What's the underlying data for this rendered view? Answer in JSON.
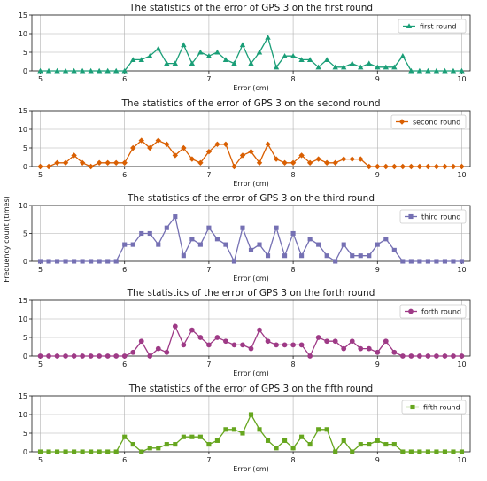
{
  "figure": {
    "ylabel": "Frequency count (times)",
    "xlabel": "Error (cm)"
  },
  "chart_data": [
    {
      "type": "line",
      "title": "The statistics of the error of GPS 3 on the first round",
      "xlabel": "Error (cm)",
      "ylabel": "",
      "xlim": [
        4.9,
        10.1
      ],
      "ylim": [
        0,
        15
      ],
      "xticks": [
        5,
        6,
        7,
        8,
        9,
        10
      ],
      "yticks": [
        0,
        5,
        10,
        15
      ],
      "grid": true,
      "legend": "top-right",
      "series": [
        {
          "name": "first round",
          "color": "#1a9e77",
          "marker": "triangle",
          "x": [
            5.0,
            5.1,
            5.2,
            5.3,
            5.4,
            5.5,
            5.6,
            5.7,
            5.8,
            5.9,
            6.0,
            6.1,
            6.2,
            6.3,
            6.4,
            6.5,
            6.6,
            6.7,
            6.8,
            6.9,
            7.0,
            7.1,
            7.2,
            7.3,
            7.4,
            7.5,
            7.6,
            7.7,
            7.8,
            7.9,
            8.0,
            8.1,
            8.2,
            8.3,
            8.4,
            8.5,
            8.6,
            8.7,
            8.8,
            8.9,
            9.0,
            9.1,
            9.2,
            9.3,
            9.4,
            9.5,
            9.6,
            9.7,
            9.8,
            9.9,
            10.0
          ],
          "y": [
            0,
            0,
            0,
            0,
            0,
            0,
            0,
            0,
            0,
            0,
            0,
            3,
            3,
            4,
            6,
            2,
            2,
            7,
            2,
            5,
            4,
            5,
            3,
            2,
            7,
            2,
            5,
            9,
            1,
            4,
            4,
            3,
            3,
            1,
            3,
            1,
            1,
            2,
            1,
            2,
            1,
            1,
            1,
            4,
            0,
            0,
            0,
            0,
            0,
            0,
            0
          ]
        }
      ]
    },
    {
      "type": "line",
      "title": "The statistics of the error of GPS 3 on the second round",
      "xlabel": "Error (cm)",
      "ylabel": "",
      "xlim": [
        4.9,
        10.1
      ],
      "ylim": [
        0,
        15
      ],
      "xticks": [
        5,
        6,
        7,
        8,
        9,
        10
      ],
      "yticks": [
        0,
        5,
        10,
        15
      ],
      "grid": true,
      "legend": "top-right",
      "series": [
        {
          "name": "second round",
          "color": "#d95f02",
          "marker": "diamond",
          "x": [
            5.0,
            5.1,
            5.2,
            5.3,
            5.4,
            5.5,
            5.6,
            5.7,
            5.8,
            5.9,
            6.0,
            6.1,
            6.2,
            6.3,
            6.4,
            6.5,
            6.6,
            6.7,
            6.8,
            6.9,
            7.0,
            7.1,
            7.2,
            7.3,
            7.4,
            7.5,
            7.6,
            7.7,
            7.8,
            7.9,
            8.0,
            8.1,
            8.2,
            8.3,
            8.4,
            8.5,
            8.6,
            8.7,
            8.8,
            8.9,
            9.0,
            9.1,
            9.2,
            9.3,
            9.4,
            9.5,
            9.6,
            9.7,
            9.8,
            9.9,
            10.0
          ],
          "y": [
            0,
            0,
            1,
            1,
            3,
            1,
            0,
            1,
            1,
            1,
            1,
            5,
            7,
            5,
            7,
            6,
            3,
            5,
            2,
            1,
            4,
            6,
            6,
            0,
            3,
            4,
            1,
            6,
            2,
            1,
            1,
            3,
            1,
            2,
            1,
            1,
            2,
            2,
            2,
            0,
            0,
            0,
            0,
            0,
            0,
            0,
            0,
            0,
            0,
            0,
            0
          ]
        }
      ]
    },
    {
      "type": "line",
      "title": "The statistics of the error of GPS 3 on the third round",
      "xlabel": "Error (cm)",
      "ylabel": "Frequency count (times)",
      "xlim": [
        4.9,
        10.1
      ],
      "ylim": [
        0,
        10
      ],
      "xticks": [
        5,
        6,
        7,
        8,
        9,
        10
      ],
      "yticks": [
        0,
        5,
        10
      ],
      "grid": true,
      "legend": "top-right",
      "series": [
        {
          "name": "third round",
          "color": "#7570b3",
          "marker": "square",
          "x": [
            5.0,
            5.1,
            5.2,
            5.3,
            5.4,
            5.5,
            5.6,
            5.7,
            5.8,
            5.9,
            6.0,
            6.1,
            6.2,
            6.3,
            6.4,
            6.5,
            6.6,
            6.7,
            6.8,
            6.9,
            7.0,
            7.1,
            7.2,
            7.3,
            7.4,
            7.5,
            7.6,
            7.7,
            7.8,
            7.9,
            8.0,
            8.1,
            8.2,
            8.3,
            8.4,
            8.5,
            8.6,
            8.7,
            8.8,
            8.9,
            9.0,
            9.1,
            9.2,
            9.3,
            9.4,
            9.5,
            9.6,
            9.7,
            9.8,
            9.9,
            10.0
          ],
          "y": [
            0,
            0,
            0,
            0,
            0,
            0,
            0,
            0,
            0,
            0,
            3,
            3,
            5,
            5,
            3,
            6,
            8,
            1,
            4,
            3,
            6,
            4,
            3,
            0,
            6,
            2,
            3,
            1,
            6,
            1,
            5,
            1,
            4,
            3,
            1,
            0,
            3,
            1,
            1,
            1,
            3,
            4,
            2,
            0,
            0,
            0,
            0,
            0,
            0,
            0,
            0
          ]
        }
      ]
    },
    {
      "type": "line",
      "title": "The statistics of the error of GPS 3 on the forth round",
      "xlabel": "Error (cm)",
      "ylabel": "",
      "xlim": [
        4.9,
        10.1
      ],
      "ylim": [
        0,
        15
      ],
      "xticks": [
        5,
        6,
        7,
        8,
        9,
        10
      ],
      "yticks": [
        0,
        5,
        10,
        15
      ],
      "grid": true,
      "legend": "top-right",
      "series": [
        {
          "name": "forth round",
          "color": "#9e3a86",
          "marker": "circle",
          "x": [
            5.0,
            5.1,
            5.2,
            5.3,
            5.4,
            5.5,
            5.6,
            5.7,
            5.8,
            5.9,
            6.0,
            6.1,
            6.2,
            6.3,
            6.4,
            6.5,
            6.6,
            6.7,
            6.8,
            6.9,
            7.0,
            7.1,
            7.2,
            7.3,
            7.4,
            7.5,
            7.6,
            7.7,
            7.8,
            7.9,
            8.0,
            8.1,
            8.2,
            8.3,
            8.4,
            8.5,
            8.6,
            8.7,
            8.8,
            8.9,
            9.0,
            9.1,
            9.2,
            9.3,
            9.4,
            9.5,
            9.6,
            9.7,
            9.8,
            9.9,
            10.0
          ],
          "y": [
            0,
            0,
            0,
            0,
            0,
            0,
            0,
            0,
            0,
            0,
            0,
            1,
            4,
            0,
            2,
            1,
            8,
            3,
            7,
            5,
            3,
            5,
            4,
            3,
            3,
            2,
            7,
            4,
            3,
            3,
            3,
            3,
            0,
            5,
            4,
            4,
            2,
            4,
            2,
            2,
            1,
            4,
            1,
            0,
            0,
            0,
            0,
            0,
            0,
            0,
            0
          ]
        }
      ]
    },
    {
      "type": "line",
      "title": "The statistics of the error of GPS 3 on the fifth round",
      "xlabel": "Error (cm)",
      "ylabel": "",
      "xlim": [
        4.9,
        10.1
      ],
      "ylim": [
        0,
        15
      ],
      "xticks": [
        5,
        6,
        7,
        8,
        9,
        10
      ],
      "yticks": [
        0,
        5,
        10,
        15
      ],
      "grid": true,
      "legend": "top-right",
      "series": [
        {
          "name": "fifth round",
          "color": "#66a61e",
          "marker": "square",
          "x": [
            5.0,
            5.1,
            5.2,
            5.3,
            5.4,
            5.5,
            5.6,
            5.7,
            5.8,
            5.9,
            6.0,
            6.1,
            6.2,
            6.3,
            6.4,
            6.5,
            6.6,
            6.7,
            6.8,
            6.9,
            7.0,
            7.1,
            7.2,
            7.3,
            7.4,
            7.5,
            7.6,
            7.7,
            7.8,
            7.9,
            8.0,
            8.1,
            8.2,
            8.3,
            8.4,
            8.5,
            8.6,
            8.7,
            8.8,
            8.9,
            9.0,
            9.1,
            9.2,
            9.3,
            9.4,
            9.5,
            9.6,
            9.7,
            9.8,
            9.9,
            10.0
          ],
          "y": [
            0,
            0,
            0,
            0,
            0,
            0,
            0,
            0,
            0,
            0,
            4,
            2,
            0,
            1,
            1,
            2,
            2,
            4,
            4,
            4,
            2,
            3,
            6,
            6,
            5,
            10,
            6,
            3,
            1,
            3,
            1,
            4,
            2,
            6,
            6,
            0,
            3,
            0,
            2,
            2,
            3,
            2,
            2,
            0,
            0,
            0,
            0,
            0,
            0,
            0,
            0
          ]
        }
      ]
    }
  ]
}
